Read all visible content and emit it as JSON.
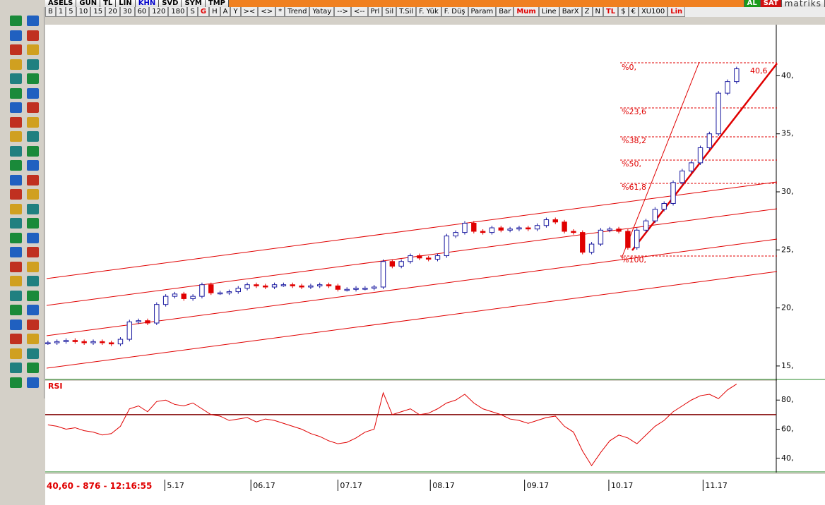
{
  "toolbar_top": {
    "symbol": "ASELS",
    "buttons": [
      "GUN",
      "TL",
      "LIN",
      "KHN",
      "SVD",
      "SYM",
      "TMP"
    ],
    "buy": "AL",
    "sell": "SAT",
    "brand": "matriks"
  },
  "toolbar_second": [
    "B",
    "1",
    "5",
    "10",
    "15",
    "20",
    "30",
    "60",
    "120",
    "180",
    "S",
    "G",
    "H",
    "A",
    "Y",
    "><",
    "<>",
    "*",
    "Trend",
    "Yatay",
    "-->",
    "<--",
    "Prl",
    "Sil",
    "T.Sil",
    "F. Yük",
    "F. Düş",
    "Param",
    "Bar",
    "Mum",
    "Line",
    "BarX",
    "Z",
    "N",
    "TL",
    "$",
    "€",
    "XU100",
    "Lin"
  ],
  "status": "40,60 - 876 - 12:16:55",
  "chart_data": [
    {
      "type": "candlestick",
      "values": [
        17.0,
        17.1,
        17.2,
        17.1,
        17.0,
        17.1,
        17.0,
        16.9,
        17.3,
        18.8,
        18.9,
        18.7,
        20.3,
        21.0,
        21.2,
        20.8,
        21.0,
        22.0,
        21.3,
        21.3,
        21.4,
        21.7,
        22.0,
        21.9,
        21.8,
        22.0,
        22.0,
        21.9,
        21.8,
        21.9,
        22.0,
        21.9,
        21.6,
        21.6,
        21.7,
        21.7,
        21.8,
        24.0,
        23.6,
        24.0,
        24.5,
        24.3,
        24.2,
        24.5,
        26.2,
        26.5,
        27.3,
        26.6,
        26.5,
        26.9,
        26.7,
        26.8,
        26.9,
        26.8,
        27.1,
        27.6,
        27.4,
        26.6,
        26.5,
        24.8,
        25.5,
        26.7,
        26.8,
        26.6,
        25.2,
        26.7,
        27.5,
        28.5,
        29.0,
        30.8,
        31.8,
        32.5,
        33.8,
        35.0,
        38.5,
        39.5,
        40.6
      ],
      "up_color": "#1a1aa0",
      "down_color": "#e00000",
      "xlim": [
        -0.3,
        80.3
      ],
      "xticks": [
        {
          "value": 12.9,
          "label": "5.17"
        },
        {
          "value": 22.4,
          "label": "06.17"
        },
        {
          "value": 32.0,
          "label": "07.17"
        },
        {
          "value": 42.2,
          "label": "08.17"
        },
        {
          "value": 52.6,
          "label": "09.17"
        },
        {
          "value": 61.9,
          "label": "10.17"
        },
        {
          "value": 72.3,
          "label": "11.17"
        }
      ],
      "ylim": [
        13.9,
        44.4
      ],
      "yticks": [
        {
          "value": 15,
          "label": "15,"
        },
        {
          "value": 20,
          "label": "20,"
        },
        {
          "value": 25,
          "label": "25,"
        },
        {
          "value": 30,
          "label": "30,"
        },
        {
          "value": 35,
          "label": "35,"
        },
        {
          "value": 40,
          "label": "40,"
        }
      ],
      "fib_labels": [
        "%0,",
        "%23,6",
        "%38,2",
        "%50,",
        "%61,8",
        "%100,"
      ],
      "last_label": "40,6"
    },
    {
      "type": "line",
      "title": "RSI",
      "color": "#e00000",
      "values": [
        63,
        62,
        60,
        61,
        59,
        58,
        56,
        57,
        62,
        74,
        76,
        72,
        79,
        80,
        77,
        76,
        78,
        74,
        70,
        69,
        66,
        67,
        68,
        65,
        67,
        66,
        64,
        62,
        60,
        57,
        55,
        52,
        50,
        51,
        54,
        58,
        60,
        85,
        70,
        72,
        74,
        70,
        71,
        74,
        78,
        80,
        84,
        78,
        74,
        72,
        70,
        67,
        66,
        64,
        66,
        68,
        69,
        62,
        58,
        45,
        35,
        44,
        52,
        56,
        54,
        50,
        56,
        62,
        66,
        72,
        76,
        80,
        83,
        84,
        81,
        87,
        91
      ],
      "xlim": [
        -0.3,
        80.3
      ],
      "ylim": [
        30.7,
        93.2
      ],
      "yticks": [
        {
          "value": 40,
          "label": "40,"
        },
        {
          "value": 60,
          "label": "60,"
        },
        {
          "value": 80,
          "label": "80,"
        }
      ],
      "reference_line": 70
    }
  ]
}
